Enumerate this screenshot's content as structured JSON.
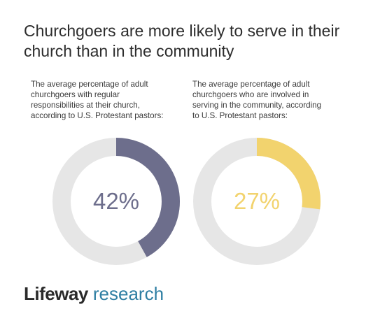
{
  "title_line1": "Churchgoers are more likely to serve in their",
  "title_line2": "church than in the community",
  "chart_data": [
    {
      "type": "pie",
      "description": [
        "The average percentage of adult",
        "churchgoers with regular",
        "responsibilities at their church,",
        "according to U.S. Protestant pastors:"
      ],
      "value": 42,
      "label": "42%",
      "color": "#6d6e8c",
      "track_color": "#e6e6e6"
    },
    {
      "type": "pie",
      "description": [
        "The average percentage of adult",
        "churchgoers who are involved in",
        "serving in the community, according",
        "to U.S. Protestant pastors:"
      ],
      "value": 27,
      "label": "27%",
      "color": "#f2d36e",
      "track_color": "#e6e6e6"
    }
  ],
  "logo": {
    "brand": "Lifeway",
    "sub": "research",
    "brand_color": "#2a2a2a",
    "sub_color": "#2f7fa3"
  }
}
